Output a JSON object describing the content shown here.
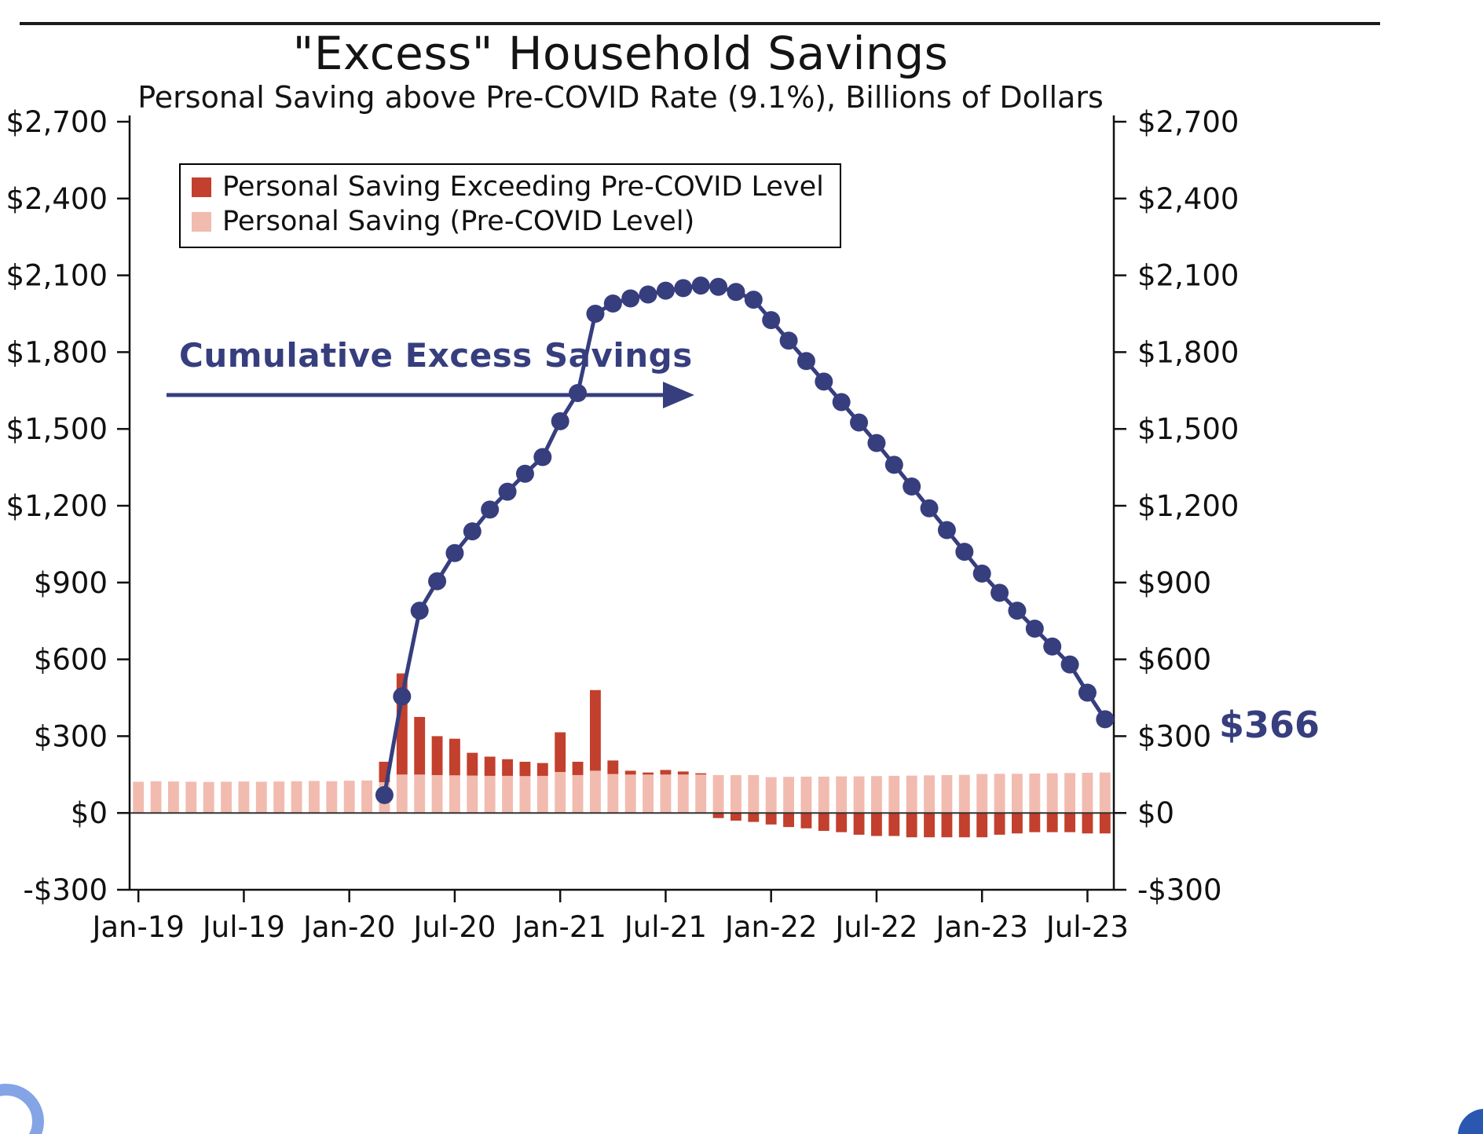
{
  "chart_data": {
    "type": "bar+line",
    "title": "\"Excess\" Household Savings",
    "subtitle": "Personal Saving above Pre-COVID Rate (9.1%), Billions of Dollars",
    "unit": "Billions of Dollars",
    "ylim": [
      -300,
      2700
    ],
    "y_ticks": [
      -300,
      0,
      300,
      600,
      900,
      1200,
      1500,
      1800,
      2100,
      2400,
      2700
    ],
    "y_tick_labels": [
      "-$300",
      "$0",
      "$300",
      "$600",
      "$900",
      "$1,200",
      "$1,500",
      "$1,800",
      "$2,100",
      "$2,400",
      "$2,700"
    ],
    "x_tick_indices": [
      0,
      6,
      12,
      18,
      24,
      30,
      36,
      42,
      48,
      54
    ],
    "months": [
      "Jan-19",
      "Feb-19",
      "Mar-19",
      "Apr-19",
      "May-19",
      "Jun-19",
      "Jul-19",
      "Aug-19",
      "Sep-19",
      "Oct-19",
      "Nov-19",
      "Dec-19",
      "Jan-20",
      "Feb-20",
      "Mar-20",
      "Apr-20",
      "May-20",
      "Jun-20",
      "Jul-20",
      "Aug-20",
      "Sep-20",
      "Oct-20",
      "Nov-20",
      "Dec-20",
      "Jan-21",
      "Feb-21",
      "Mar-21",
      "Apr-21",
      "May-21",
      "Jun-21",
      "Jul-21",
      "Aug-21",
      "Sep-21",
      "Oct-21",
      "Nov-21",
      "Dec-21",
      "Jan-22",
      "Feb-22",
      "Mar-22",
      "Apr-22",
      "May-22",
      "Jun-22",
      "Jul-22",
      "Aug-22",
      "Sep-22",
      "Oct-22",
      "Nov-22",
      "Dec-22",
      "Jan-23",
      "Feb-23",
      "Mar-23",
      "Apr-23",
      "May-23",
      "Jun-23",
      "Jul-23",
      "Aug-23"
    ],
    "series": [
      {
        "name": "Personal Saving (Pre-COVID Level)",
        "type": "bar",
        "stack": "base",
        "color": "#f2bbb0",
        "values": [
          122,
          124,
          123,
          122,
          121,
          122,
          123,
          122,
          123,
          124,
          125,
          124,
          126,
          127,
          120,
          150,
          150,
          148,
          147,
          146,
          145,
          145,
          144,
          145,
          160,
          148,
          165,
          152,
          150,
          150,
          150,
          150,
          150,
          148,
          148,
          148,
          140,
          141,
          142,
          142,
          143,
          143,
          144,
          145,
          146,
          147,
          148,
          149,
          152,
          153,
          153,
          154,
          155,
          156,
          157,
          158
        ]
      },
      {
        "name": "Personal Saving Exceeding Pre-COVID Level",
        "type": "bar",
        "stack": "top",
        "color": "#c2402d",
        "values": [
          0,
          0,
          0,
          0,
          0,
          0,
          0,
          0,
          0,
          0,
          0,
          0,
          0,
          0,
          80,
          395,
          225,
          152,
          143,
          89,
          75,
          65,
          56,
          50,
          155,
          52,
          315,
          53,
          15,
          8,
          18,
          12,
          5,
          -20,
          -30,
          -35,
          -45,
          -55,
          -60,
          -70,
          -75,
          -85,
          -90,
          -90,
          -95,
          -95,
          -95,
          -95,
          -95,
          -85,
          -80,
          -75,
          -75,
          -75,
          -80,
          -80
        ]
      },
      {
        "name": "Cumulative Excess Savings",
        "type": "line",
        "color": "#363e7e",
        "values": [
          null,
          null,
          null,
          null,
          null,
          null,
          null,
          null,
          null,
          null,
          null,
          null,
          null,
          null,
          70,
          455,
          790,
          905,
          1015,
          1100,
          1185,
          1255,
          1325,
          1390,
          1530,
          1640,
          1950,
          1990,
          2010,
          2025,
          2040,
          2050,
          2060,
          2055,
          2035,
          2005,
          1925,
          1845,
          1765,
          1685,
          1605,
          1525,
          1445,
          1360,
          1275,
          1190,
          1105,
          1020,
          935,
          860,
          790,
          720,
          650,
          580,
          470,
          366
        ]
      }
    ],
    "legend": [
      {
        "label": "Personal Saving Exceeding Pre-COVID Level",
        "color": "#c2402d"
      },
      {
        "label": "Personal Saving (Pre-COVID Level)",
        "color": "#f2bbb0"
      }
    ],
    "annotations": {
      "cumulative": "Cumulative Excess Savings",
      "end_value": "$366"
    }
  }
}
